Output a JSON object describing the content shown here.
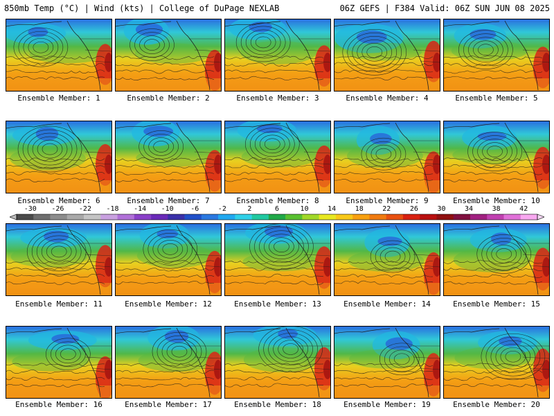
{
  "header": {
    "left": "850mb Temp (°C) | Wind (kts) | College of DuPage NEXLAB",
    "right": "06Z GEFS | F384 Valid: 06Z SUN JUN 08 2025"
  },
  "members": [
    {
      "label": "Ensemble Member: 1"
    },
    {
      "label": "Ensemble Member: 2"
    },
    {
      "label": "Ensemble Member: 3"
    },
    {
      "label": "Ensemble Member: 4"
    },
    {
      "label": "Ensemble Member: 5"
    },
    {
      "label": "Ensemble Member: 6"
    },
    {
      "label": "Ensemble Member: 7"
    },
    {
      "label": "Ensemble Member: 8"
    },
    {
      "label": "Ensemble Member: 9"
    },
    {
      "label": "Ensemble Member: 10"
    },
    {
      "label": "Ensemble Member: 11"
    },
    {
      "label": "Ensemble Member: 12"
    },
    {
      "label": "Ensemble Member: 13"
    },
    {
      "label": "Ensemble Member: 14"
    },
    {
      "label": "Ensemble Member: 15"
    },
    {
      "label": "Ensemble Member: 16"
    },
    {
      "label": "Ensemble Member: 17"
    },
    {
      "label": "Ensemble Member: 18"
    },
    {
      "label": "Ensemble Member: 19"
    },
    {
      "label": "Ensemble Member: 20"
    }
  ],
  "colorbar": {
    "labels": [
      "-30",
      "-26",
      "-22",
      "-18",
      "-14",
      "-10",
      "-6",
      "-2",
      "2",
      "6",
      "10",
      "14",
      "18",
      "22",
      "26",
      "30",
      "34",
      "38",
      "42"
    ],
    "colors": [
      "#4a4a4a",
      "#6e6e6e",
      "#8c8c8c",
      "#a8a8a8",
      "#c4c4c4",
      "#c8a0e0",
      "#b070d8",
      "#8a40c8",
      "#6a2ab8",
      "#3a30a8",
      "#2050c8",
      "#2a78e0",
      "#20a8f0",
      "#30d0e8",
      "#20c8a0",
      "#20a848",
      "#58c030",
      "#a0d828",
      "#e8e820",
      "#f8c818",
      "#f8a010",
      "#f07a10",
      "#e85010",
      "#d82010",
      "#b81010",
      "#901010",
      "#801040",
      "#a02080",
      "#c040b0",
      "#e070d8",
      "#f8a8f0"
    ]
  }
}
